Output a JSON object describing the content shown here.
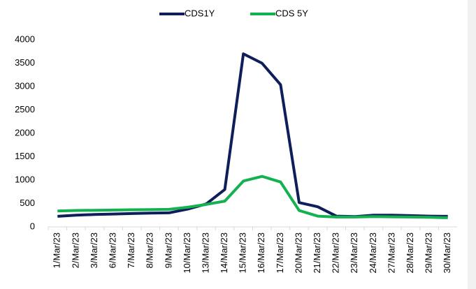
{
  "chart_data": {
    "type": "line",
    "categories": [
      "1/Mar/23",
      "2/Mar/23",
      "3/Mar/23",
      "6/Mar/23",
      "7/Mar/23",
      "8/Mar/23",
      "9/Mar/23",
      "10/Mar/23",
      "13/Mar/23",
      "14/Mar/23",
      "15/Mar/23",
      "16/Mar/23",
      "17/Mar/23",
      "20/Mar/23",
      "21/Mar/23",
      "22/Mar/23",
      "23/Mar/23",
      "24/Mar/23",
      "27/Mar/23",
      "28/Mar/23",
      "29/Mar/23",
      "30/Mar/23"
    ],
    "series": [
      {
        "name": "CDS1Y",
        "color": "#0e1e5b",
        "values": [
          225,
          250,
          265,
          275,
          285,
          295,
          300,
          380,
          490,
          800,
          3700,
          3500,
          3040,
          520,
          430,
          230,
          220,
          250,
          250,
          240,
          230,
          225
        ]
      },
      {
        "name": "CDS 5Y",
        "color": "#13b150",
        "values": [
          340,
          350,
          355,
          360,
          365,
          370,
          375,
          420,
          480,
          550,
          980,
          1080,
          960,
          350,
          230,
          210,
          210,
          220,
          215,
          210,
          205,
          195
        ]
      }
    ],
    "ylim": [
      0,
      4000
    ],
    "yticks": [
      0,
      500,
      1000,
      1500,
      2000,
      2500,
      3000,
      3500,
      4000
    ],
    "grid": false,
    "legend": "top"
  }
}
